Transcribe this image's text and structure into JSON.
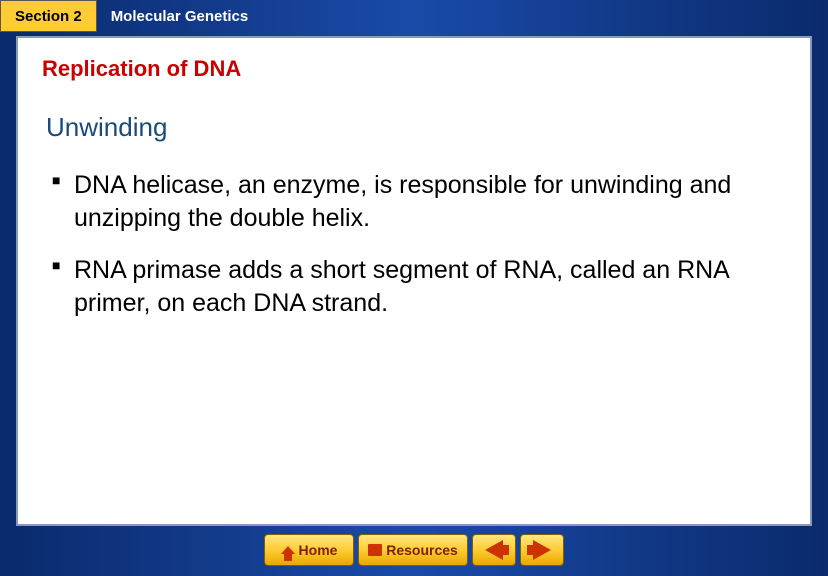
{
  "header": {
    "section_label": "Section 2",
    "topic_label": "Molecular Genetics"
  },
  "content": {
    "title": "Replication of DNA",
    "subtitle": "Unwinding",
    "bullets": [
      "DNA helicase, an enzyme, is responsible for unwinding and unzipping the double helix.",
      "RNA primase adds a short segment of RNA, called an RNA primer, on each DNA strand."
    ]
  },
  "footer": {
    "home_label": "Home",
    "resources_label": "Resources"
  },
  "colors": {
    "frame_bg": "#0a2a6c",
    "tab_bg": "#ffcc33",
    "title_color": "#cc0000",
    "subtitle_color": "#1a4a7a",
    "panel_bg": "#ffffff",
    "button_accent": "#cc3300"
  },
  "typography": {
    "title_fontsize": 22,
    "subtitle_fontsize": 26,
    "bullet_fontsize": 25,
    "header_fontsize": 15,
    "footer_fontsize": 14
  }
}
